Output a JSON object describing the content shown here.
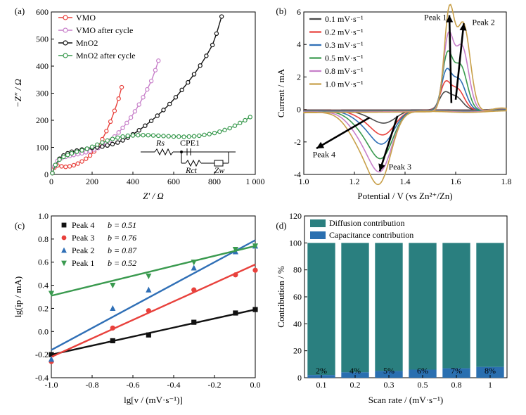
{
  "colors": {
    "red": "#e8413c",
    "pink": "#c77fc9",
    "black": "#111111",
    "green": "#3a9a4f",
    "grey": "#4a4a4a",
    "blue": "#2f6fb6",
    "gold": "#c8a04a",
    "teal": "#2a7f7f",
    "capblue": "#2a6fb0"
  },
  "chart_data": [
    {
      "panel": "(a)",
      "type": "line",
      "xlabel": "Z′ / Ω",
      "ylabel": "−Z″ / Ω",
      "xlim": [
        0,
        1000
      ],
      "ylim": [
        0,
        600
      ],
      "xticks": [
        0,
        200,
        400,
        600,
        800,
        1000
      ],
      "xtick_labels": [
        "0",
        "200",
        "400",
        "600",
        "800",
        "1 000"
      ],
      "yticks": [
        0,
        100,
        200,
        300,
        400,
        500,
        600
      ],
      "legend_position": "top-left",
      "inset_labels": [
        "Rs",
        "CPE1",
        "Rct",
        "Zw"
      ],
      "series": [
        {
          "name": "VMO",
          "color": "red",
          "marker": "circle",
          "x": [
            5,
            15,
            30,
            50,
            70,
            90,
            110,
            130,
            150,
            170,
            190,
            210,
            230,
            250,
            270,
            290,
            310,
            330,
            345
          ],
          "y": [
            5,
            25,
            33,
            30,
            28,
            30,
            34,
            40,
            48,
            58,
            70,
            85,
            105,
            130,
            160,
            195,
            235,
            280,
            322
          ]
        },
        {
          "name": "VMO after cycle",
          "color": "pink",
          "marker": "circle",
          "x": [
            5,
            15,
            30,
            50,
            70,
            90,
            110,
            130,
            150,
            170,
            190,
            210,
            230,
            250,
            270,
            290,
            310,
            330,
            350,
            370,
            390,
            410,
            430,
            450,
            470,
            490,
            510,
            525
          ],
          "y": [
            5,
            30,
            50,
            60,
            65,
            68,
            72,
            75,
            78,
            82,
            86,
            92,
            98,
            106,
            115,
            126,
            140,
            155,
            172,
            190,
            210,
            233,
            258,
            285,
            314,
            345,
            385,
            420
          ]
        },
        {
          "name": "MnO2",
          "color": "black",
          "marker": "circle",
          "x": [
            5,
            20,
            40,
            60,
            80,
            100,
            125,
            150,
            175,
            200,
            225,
            250,
            275,
            300,
            325,
            350,
            375,
            400,
            430,
            460,
            490,
            520,
            550,
            580,
            610,
            640,
            670,
            700,
            730,
            760,
            790,
            810,
            835
          ],
          "y": [
            5,
            35,
            58,
            70,
            78,
            84,
            88,
            92,
            95,
            98,
            100,
            103,
            107,
            112,
            118,
            126,
            136,
            148,
            163,
            180,
            198,
            217,
            238,
            260,
            285,
            312,
            340,
            370,
            402,
            438,
            478,
            520,
            583
          ]
        },
        {
          "name": "MnO2 after cycle",
          "color": "green",
          "marker": "circle",
          "x": [
            5,
            20,
            40,
            60,
            80,
            100,
            125,
            150,
            175,
            200,
            225,
            250,
            275,
            300,
            325,
            350,
            375,
            400,
            425,
            450,
            475,
            500,
            525,
            550,
            575,
            600,
            625,
            650,
            675,
            700,
            725,
            750,
            775,
            800,
            825,
            850,
            875,
            900,
            925,
            950,
            975
          ],
          "y": [
            5,
            35,
            55,
            65,
            72,
            78,
            84,
            89,
            95,
            102,
            110,
            118,
            125,
            131,
            136,
            140,
            143,
            144,
            145,
            145,
            145,
            144,
            143,
            142,
            141,
            140,
            140,
            139,
            140,
            141,
            143,
            146,
            149,
            153,
            158,
            164,
            171,
            180,
            190,
            200,
            212
          ]
        }
      ]
    },
    {
      "panel": "(b)",
      "type": "line",
      "xlabel": "Potential / V (vs Zn²⁺/Zn)",
      "ylabel": "Current / mA",
      "xlim": [
        1.0,
        1.8
      ],
      "ylim": [
        -4,
        6
      ],
      "xticks": [
        1.0,
        1.2,
        1.4,
        1.6,
        1.8
      ],
      "yticks": [
        -4,
        -2,
        0,
        2,
        4,
        6
      ],
      "legend_position": "top-left",
      "annotations": [
        "Peak 1",
        "Peak 2",
        "Peak 3",
        "Peak 4"
      ],
      "series": [
        {
          "name": "0.1 mV·s⁻¹",
          "color": "grey",
          "cv": {
            "oa": 0.9,
            "ob": 0.8,
            "r3": -0.55,
            "r4": -0.35,
            "c1": 0.08,
            "a": 1.554,
            "b": 1.6,
            "ra": 1.326,
            "rb": 1.279
          }
        },
        {
          "name": "0.2 mV·s⁻¹",
          "color": "red",
          "cv": {
            "oa": 1.5,
            "ob": 1.3,
            "r3": -1.05,
            "r4": -0.65,
            "c1": 0.15,
            "a": 1.558,
            "b": 1.606,
            "ra": 1.322,
            "rb": 1.271
          }
        },
        {
          "name": "0.3 mV·s⁻¹",
          "color": "blue",
          "cv": {
            "oa": 2.2,
            "ob": 1.9,
            "r3": -1.45,
            "r4": -0.9,
            "c1": 0.22,
            "a": 1.562,
            "b": 1.612,
            "ra": 1.318,
            "rb": 1.263
          }
        },
        {
          "name": "0.5 mV·s⁻¹",
          "color": "green",
          "cv": {
            "oa": 3.2,
            "ob": 2.8,
            "r3": -2.1,
            "r4": -1.3,
            "c1": 0.3,
            "a": 1.566,
            "b": 1.618,
            "ra": 1.314,
            "rb": 1.255
          }
        },
        {
          "name": "0.8 mV·s⁻¹",
          "color": "pink",
          "cv": {
            "oa": 4.3,
            "ob": 4.0,
            "r3": -2.7,
            "r4": -1.7,
            "c1": 0.38,
            "a": 1.57,
            "b": 1.624,
            "ra": 1.31,
            "rb": 1.247
          }
        },
        {
          "name": "1.0 mV·s⁻¹",
          "color": "gold",
          "cv": {
            "oa": 5.9,
            "ob": 5.4,
            "r3": -3.3,
            "r4": -2.1,
            "c1": 0.45,
            "a": 1.574,
            "b": 1.63,
            "ra": 1.306,
            "rb": 1.239
          }
        }
      ]
    },
    {
      "panel": "(c)",
      "type": "scatter",
      "xlabel": "lg[v / (mV·s⁻¹)]",
      "ylabel": "lg(ip / mA)",
      "xlim": [
        -1.0,
        0.0
      ],
      "ylim": [
        -0.4,
        1.0
      ],
      "xticks": [
        -1.0,
        -0.8,
        -0.6,
        -0.4,
        -0.2,
        0.0
      ],
      "yticks": [
        -0.4,
        -0.2,
        0.0,
        0.2,
        0.4,
        0.6,
        0.8,
        1.0
      ],
      "legend_position": "top-left",
      "x": [
        -1.0,
        -0.699,
        -0.523,
        -0.301,
        -0.097,
        0.0
      ],
      "series": [
        {
          "name": "Peak 4",
          "b_label": "b = 0.51",
          "color": "black",
          "marker": "square",
          "y": [
            -0.2,
            -0.08,
            -0.03,
            0.08,
            0.16,
            0.19
          ],
          "fit": [
            -0.2,
            0.19
          ]
        },
        {
          "name": "Peak 3",
          "b_label": "b = 0.76",
          "color": "red",
          "marker": "circle",
          "y": [
            -0.26,
            0.03,
            0.18,
            0.36,
            0.49,
            0.53
          ],
          "fit": [
            -0.22,
            0.58
          ]
        },
        {
          "name": "Peak 2",
          "b_label": "b = 0.87",
          "color": "blue",
          "marker": "triangle-up",
          "y": [
            -0.24,
            0.2,
            0.36,
            0.55,
            0.69,
            0.74
          ],
          "fit": [
            -0.16,
            0.79
          ]
        },
        {
          "name": "Peak 1",
          "b_label": "b = 0.52",
          "color": "green",
          "marker": "triangle-down",
          "y": [
            0.33,
            0.4,
            0.48,
            0.6,
            0.71,
            0.74
          ],
          "fit": [
            0.31,
            0.74
          ]
        }
      ]
    },
    {
      "panel": "(d)",
      "type": "bar",
      "xlabel": "Scan rate / (mV·s⁻¹)",
      "ylabel": "Contribution / %",
      "ylim": [
        0,
        120
      ],
      "yticks": [
        0,
        20,
        40,
        60,
        80,
        100,
        120
      ],
      "legend_position": "top",
      "categories": [
        "0.1",
        "0.2",
        "0.3",
        "0.5",
        "0.8",
        "1"
      ],
      "series": [
        {
          "name": "Diffusion contribution",
          "color": "teal",
          "values": [
            98,
            96,
            95,
            94,
            93,
            92
          ]
        },
        {
          "name": "Capacitance contribution",
          "color": "capblue",
          "values": [
            2,
            4,
            5,
            6,
            7,
            8
          ]
        }
      ],
      "data_labels": [
        "2%",
        "4%",
        "5%",
        "6%",
        "7%",
        "8%"
      ]
    }
  ]
}
